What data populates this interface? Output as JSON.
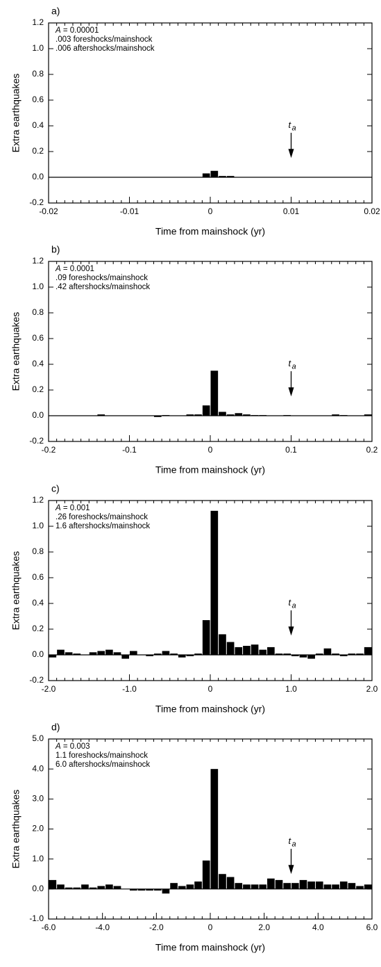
{
  "chart_data": [
    {
      "type": "histogram",
      "panel_label": "a)",
      "annotations": [
        "A = 0.00001",
        ".003 foreshocks/mainshock",
        ".006 aftershocks/mainshock"
      ],
      "arrow_label": "t",
      "arrow_label_sub": "a",
      "arrow_x": 0.01,
      "xlabel": "Time from mainshock (yr)",
      "ylabel": "Extra earthquakes",
      "color": "#000000",
      "bins": [
        -0.02,
        -0.019,
        -0.018,
        -0.017,
        -0.016,
        -0.015,
        -0.014,
        -0.013,
        -0.012,
        -0.011,
        -0.01,
        -0.009,
        -0.008,
        -0.007,
        -0.006,
        -0.005,
        -0.004,
        -0.003,
        -0.002,
        -0.001,
        0,
        0.001,
        0.002,
        0.003,
        0.004,
        0.005,
        0.006,
        0.007,
        0.008,
        0.009,
        0.01,
        0.011,
        0.012,
        0.013,
        0.014,
        0.015,
        0.016,
        0.017,
        0.018,
        0.019,
        0.02
      ],
      "values": [
        0,
        0,
        0,
        0,
        0,
        0,
        0,
        0,
        0,
        0,
        0,
        0,
        0,
        0,
        0,
        0,
        0,
        0,
        0,
        0.03,
        0.05,
        0.01,
        0.01,
        0,
        0,
        0,
        0,
        0,
        0,
        0,
        0,
        0,
        0,
        0,
        0,
        0,
        0,
        0,
        0,
        0
      ],
      "xlim": [
        -0.02,
        0.02
      ],
      "xticks": [
        -0.02,
        -0.01,
        0,
        0.01,
        0.02
      ],
      "ylim": [
        -0.2,
        1.2
      ],
      "yticks": [
        -0.2,
        {
          "value": 0,
          "label": "0.0"
        },
        0.2,
        0.4,
        0.6,
        0.8,
        {
          "value": 1,
          "label": "1.0"
        },
        1.2
      ]
    },
    {
      "type": "histogram",
      "panel_label": "b)",
      "annotations": [
        "A = 0.0001",
        ".09 foreshocks/mainshock",
        ".42 aftershocks/mainshock"
      ],
      "arrow_label": "t",
      "arrow_label_sub": "a",
      "arrow_x": 0.1,
      "xlabel": "Time from mainshock (yr)",
      "ylabel": "Extra earthquakes",
      "color": "#000000",
      "bins": [
        -0.2,
        -0.19,
        -0.18,
        -0.17,
        -0.16,
        -0.15,
        -0.14,
        -0.13,
        -0.12,
        -0.11,
        -0.1,
        -0.09,
        -0.08,
        -0.07,
        -0.06,
        -0.05,
        -0.04,
        -0.03,
        -0.02,
        -0.01,
        0,
        0.01,
        0.02,
        0.03,
        0.04,
        0.05,
        0.06,
        0.07,
        0.08,
        0.09,
        0.1,
        0.11,
        0.12,
        0.13,
        0.14,
        0.15,
        0.16,
        0.17,
        0.18,
        0.19,
        0.2
      ],
      "values": [
        0,
        0,
        0,
        0,
        0,
        0,
        0.01,
        0,
        0,
        0,
        0,
        0,
        0,
        -0.01,
        0.005,
        0,
        0,
        0.01,
        0.01,
        0.08,
        0.35,
        0.03,
        0.01,
        0.02,
        0.01,
        0.005,
        0.005,
        0,
        0,
        0.005,
        0,
        0,
        0,
        0,
        0,
        0.01,
        0.005,
        0,
        0,
        0.01
      ],
      "xlim": [
        -0.2,
        0.2
      ],
      "xticks": [
        -0.2,
        -0.1,
        0,
        0.1,
        0.2
      ],
      "ylim": [
        -0.2,
        1.2
      ],
      "yticks": [
        -0.2,
        {
          "value": 0,
          "label": "0.0"
        },
        0.2,
        0.4,
        0.6,
        0.8,
        {
          "value": 1,
          "label": "1.0"
        },
        1.2
      ]
    },
    {
      "type": "histogram",
      "panel_label": "c)",
      "annotations": [
        "A = 0.001",
        ".26 foreshocks/mainshock",
        "1.6 aftershocks/mainshock"
      ],
      "arrow_label": "t",
      "arrow_label_sub": "a",
      "arrow_x": 1,
      "xlabel": "Time from mainshock (yr)",
      "ylabel": "Extra earthquakes",
      "color": "#000000",
      "bins": [
        -2,
        -1.9,
        -1.8,
        -1.7,
        -1.6,
        -1.5,
        -1.4,
        -1.3,
        -1.2,
        -1.1,
        -1,
        -0.9,
        -0.8,
        -0.7,
        -0.6,
        -0.5,
        -0.4,
        -0.3,
        -0.2,
        -0.1,
        0,
        0.1,
        0.2,
        0.3,
        0.4,
        0.5,
        0.6,
        0.7,
        0.8,
        0.9,
        1,
        1.1,
        1.2,
        1.3,
        1.4,
        1.5,
        1.6,
        1.7,
        1.8,
        1.9,
        2
      ],
      "values": [
        -0.02,
        0.04,
        0.02,
        0.01,
        0,
        0.02,
        0.03,
        0.04,
        0.02,
        -0.03,
        0.03,
        0,
        -0.01,
        0.01,
        0.03,
        0.01,
        -0.02,
        -0.01,
        0.01,
        0.27,
        1.12,
        0.16,
        0.1,
        0.06,
        0.07,
        0.08,
        0.04,
        0.06,
        0.01,
        0.01,
        -0.01,
        -0.02,
        -0.03,
        0.01,
        0.05,
        0.01,
        -0.01,
        0.01,
        0.01,
        0.06
      ],
      "xlim": [
        -2,
        2
      ],
      "xticks": [
        {
          "value": -2,
          "label": "-2.0"
        },
        {
          "value": -1,
          "label": "-1.0"
        },
        0,
        {
          "value": 1,
          "label": "1.0"
        },
        {
          "value": 2,
          "label": "2.0"
        }
      ],
      "ylim": [
        -0.2,
        1.2
      ],
      "yticks": [
        -0.2,
        {
          "value": 0,
          "label": "0.0"
        },
        0.2,
        0.4,
        0.6,
        0.8,
        {
          "value": 1,
          "label": "1.0"
        },
        1.2
      ]
    },
    {
      "type": "histogram",
      "panel_label": "d)",
      "annotations": [
        "A = 0.003",
        "1.1 foreshocks/mainshock",
        "6.0 aftershocks/mainshock"
      ],
      "arrow_label": "t",
      "arrow_label_sub": "a",
      "arrow_x": 3,
      "xlabel": "Time from mainshock (yr)",
      "ylabel": "Extra earthquakes",
      "color": "#000000",
      "bins": [
        -6,
        -5.7,
        -5.4,
        -5.1,
        -4.8,
        -4.5,
        -4.2,
        -3.9,
        -3.6,
        -3.3,
        -3,
        -2.7,
        -2.4,
        -2.1,
        -1.8,
        -1.5,
        -1.2,
        -0.9,
        -0.6,
        -0.3,
        0,
        0.3,
        0.6,
        0.9,
        1.2,
        1.5,
        1.8,
        2.1,
        2.4,
        2.7,
        3,
        3.3,
        3.6,
        3.9,
        4.2,
        4.5,
        4.8,
        5.1,
        5.4,
        5.7,
        6
      ],
      "values": [
        0.3,
        0.15,
        0.05,
        0.05,
        0.15,
        0.05,
        0.1,
        0.15,
        0.1,
        0,
        -0.05,
        -0.05,
        -0.05,
        -0.05,
        -0.15,
        0.2,
        0.1,
        0.15,
        0.25,
        0.95,
        4.0,
        0.5,
        0.4,
        0.2,
        0.15,
        0.15,
        0.15,
        0.35,
        0.3,
        0.2,
        0.2,
        0.3,
        0.25,
        0.25,
        0.15,
        0.15,
        0.25,
        0.2,
        0.1,
        0.15
      ],
      "xlim": [
        -6,
        6
      ],
      "xticks": [
        {
          "value": -6,
          "label": "-6.0"
        },
        {
          "value": -4,
          "label": "-4.0"
        },
        {
          "value": -2,
          "label": "-2.0"
        },
        0,
        {
          "value": 2,
          "label": "2.0"
        },
        {
          "value": 4,
          "label": "4.0"
        },
        {
          "value": 6,
          "label": "6.0"
        }
      ],
      "ylim": [
        -1,
        5
      ],
      "yticks": [
        {
          "value": -1,
          "label": "-1.0"
        },
        {
          "value": 0,
          "label": "0.0"
        },
        {
          "value": 1,
          "label": "1.0"
        },
        {
          "value": 2,
          "label": "2.0"
        },
        {
          "value": 3,
          "label": "3.0"
        },
        {
          "value": 4,
          "label": "4.0"
        },
        {
          "value": 5,
          "label": "5.0"
        }
      ]
    }
  ]
}
